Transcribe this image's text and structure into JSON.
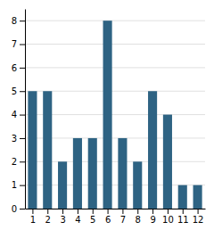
{
  "chart_data": {
    "type": "bar",
    "x": [
      1,
      2,
      3,
      4,
      5,
      6,
      7,
      8,
      9,
      10,
      11,
      12
    ],
    "values": [
      5,
      5,
      2,
      3,
      3,
      8,
      3,
      2,
      5,
      4,
      1,
      1
    ],
    "color": "#2e6383",
    "xlim": [
      0.5,
      12.5
    ],
    "xticks": [
      1,
      2,
      3,
      4,
      5,
      6,
      7,
      8,
      9,
      10,
      11,
      12
    ],
    "ylim": [
      0,
      8.5
    ],
    "yticks": [
      0,
      1,
      2,
      3,
      4,
      5,
      6,
      7,
      8
    ],
    "grid": true
  }
}
